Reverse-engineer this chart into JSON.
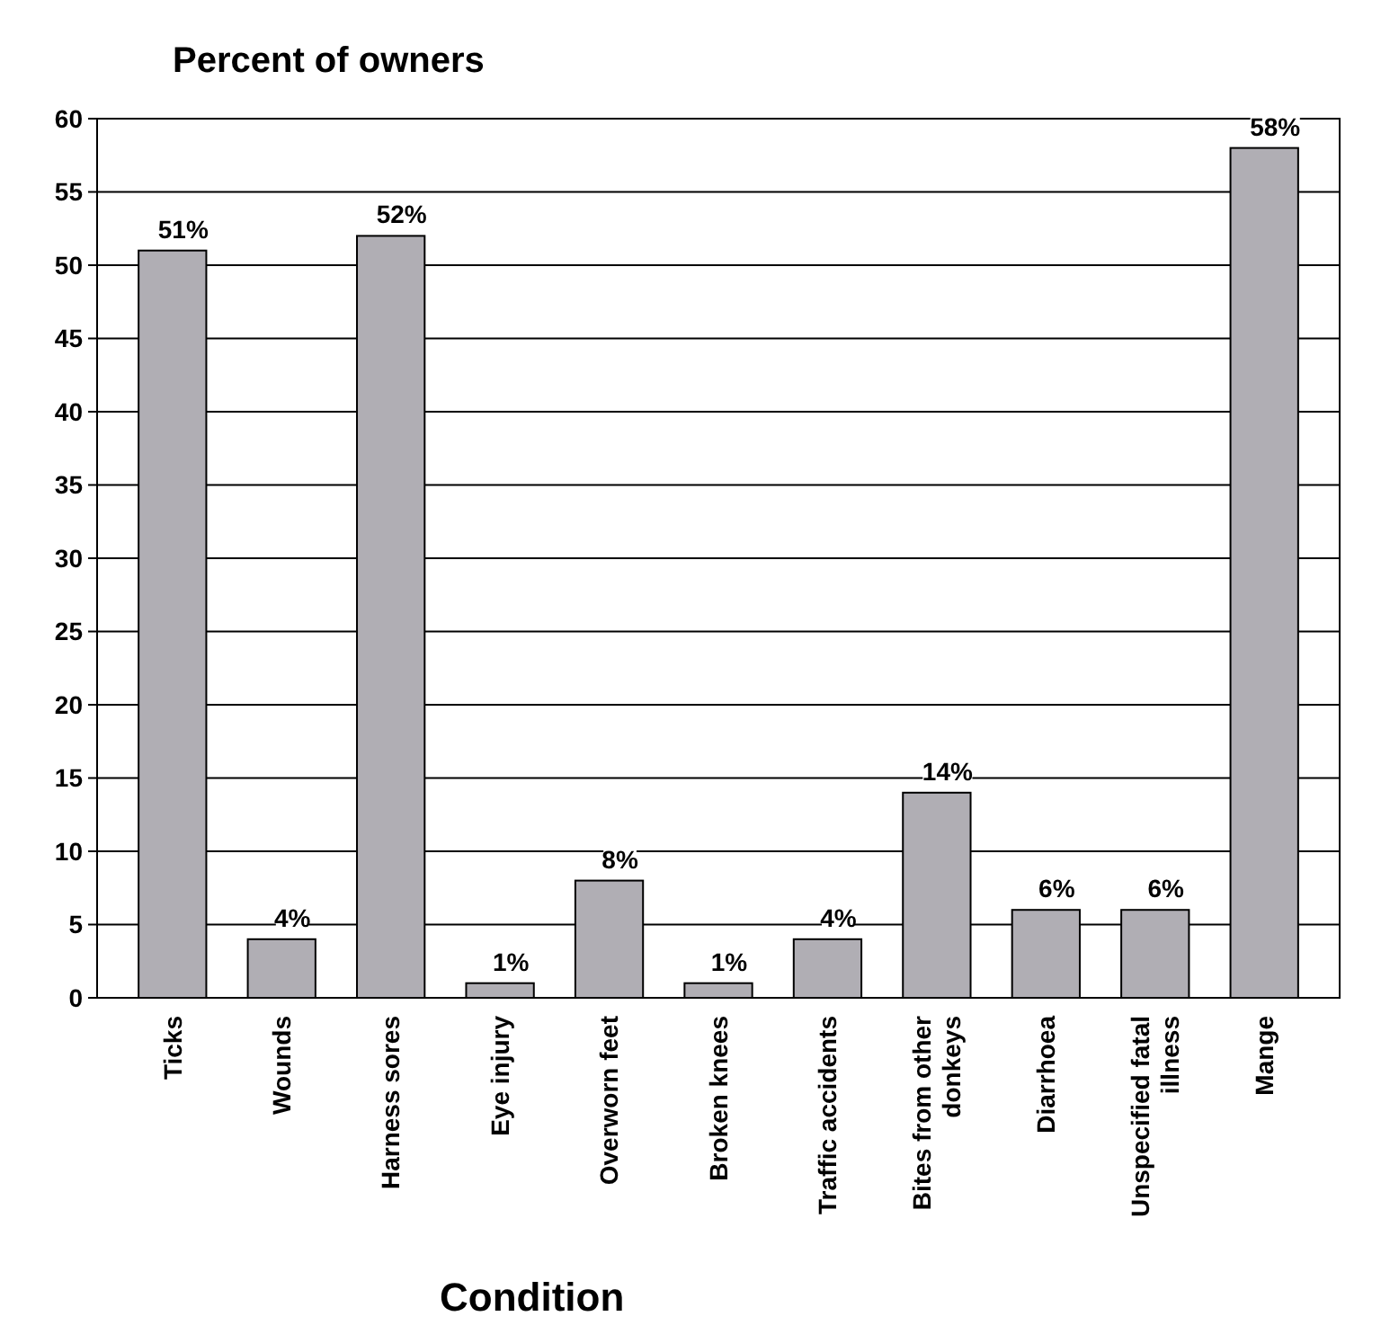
{
  "chart_data": {
    "type": "bar",
    "title": "Percent of owners",
    "xlabel": "Condition",
    "categories": [
      "Ticks",
      "Wounds",
      "Harness sores",
      "Eye injury",
      "Overworn feet",
      "Broken knees",
      "Traffic accidents",
      "Bites from other donkeys",
      "Diarrhoea",
      "Unspecified fatal illness",
      "Mange"
    ],
    "values": [
      51,
      4,
      52,
      1,
      8,
      1,
      4,
      14,
      6,
      6,
      58
    ],
    "value_labels": [
      "51%",
      "4%",
      "52%",
      "1%",
      "8%",
      "1%",
      "4%",
      "14%",
      "6%",
      "6%",
      "58%"
    ],
    "color": "#b0aeb4",
    "ylim": [
      0,
      60
    ],
    "yticks": [
      0,
      5,
      10,
      15,
      20,
      25,
      30,
      35,
      40,
      45,
      50,
      55,
      60
    ],
    "grid": "y"
  }
}
